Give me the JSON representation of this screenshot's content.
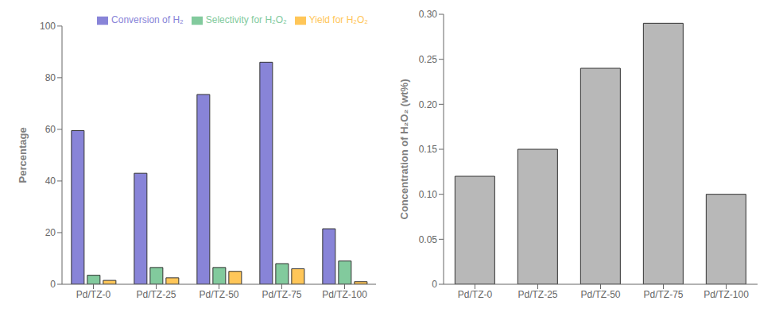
{
  "chart_data": [
    {
      "type": "bar",
      "categories": [
        "Pd/TZ-0",
        "Pd/TZ-25",
        "Pd/TZ-50",
        "Pd/TZ-75",
        "Pd/TZ-100"
      ],
      "series": [
        {
          "name": "Conversion of H₂",
          "color": "#8884d8",
          "values": [
            59.5,
            43.0,
            73.5,
            86.0,
            21.5
          ]
        },
        {
          "name": "Selectivity for H₂O₂",
          "color": "#82ca9d",
          "values": [
            3.5,
            6.5,
            6.5,
            8.0,
            9.0
          ]
        },
        {
          "name": "Yield for H₂O₂",
          "color": "#ffc658",
          "values": [
            1.5,
            2.5,
            5.0,
            6.0,
            1.0
          ]
        }
      ],
      "y_label": "Percentage",
      "ylim": [
        0,
        100
      ],
      "yticks": [
        0,
        20,
        40,
        60,
        80,
        100
      ],
      "legend": "upper right",
      "grid": false
    },
    {
      "type": "bar",
      "categories": [
        "Pd/TZ-0",
        "Pd/TZ-25",
        "Pd/TZ-50",
        "Pd/TZ-75",
        "Pd/TZ-100"
      ],
      "values": [
        0.12,
        0.15,
        0.24,
        0.29,
        0.1
      ],
      "color": "#b8b8b8",
      "y_label": "Concentration of H₂O₂ (wt%)",
      "ylim": [
        0,
        0.3
      ],
      "yticks": [
        0,
        0.05,
        {
          "value": 0.1,
          "label": "0.10"
        },
        0.15,
        {
          "value": 0.2,
          "label": "0.20"
        },
        0.25,
        {
          "value": 0.3,
          "label": "0.30"
        }
      ],
      "grid": false
    }
  ]
}
